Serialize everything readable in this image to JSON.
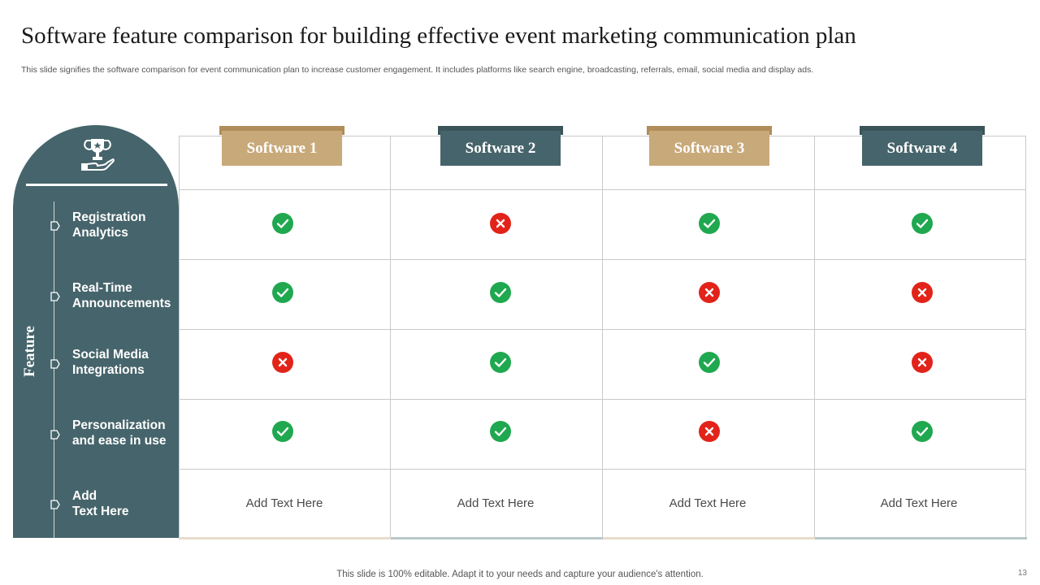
{
  "title": "Software feature comparison for building effective event marketing communication plan",
  "subtitle": "This slide signifies the software comparison for event communication plan to increase customer engagement. It includes platforms like search engine, broadcasting, referrals, email, social media and display ads.",
  "panel": {
    "vertical_label": "Feature",
    "icon": "trophy-in-hand-icon",
    "features": [
      {
        "line1": "Registration",
        "line2": "Analytics"
      },
      {
        "line1": "Real-Time",
        "line2": "Announcements"
      },
      {
        "line1": "Social Media",
        "line2": "Integrations"
      },
      {
        "line1": "Personalization",
        "line2": "and ease in use"
      },
      {
        "line1": "Add",
        "line2": "Text Here"
      }
    ]
  },
  "software": [
    {
      "name": "Software 1",
      "color": "#c8a97a",
      "cap_color": "#b08d59"
    },
    {
      "name": "Software 2",
      "color": "#46646b",
      "cap_color": "#3a545a"
    },
    {
      "name": "Software 3",
      "color": "#c8a97a",
      "cap_color": "#b08d59"
    },
    {
      "name": "Software 4",
      "color": "#46646b",
      "cap_color": "#3a545a"
    }
  ],
  "matrix": [
    [
      "check",
      "cross",
      "check",
      "check"
    ],
    [
      "check",
      "check",
      "cross",
      "cross"
    ],
    [
      "cross",
      "check",
      "check",
      "cross"
    ],
    [
      "check",
      "check",
      "cross",
      "check"
    ]
  ],
  "last_row": [
    "Add Text Here",
    "Add Text Here",
    "Add Text Here",
    "Add Text Here"
  ],
  "colors": {
    "check": "#1fa84f",
    "cross": "#e2231a",
    "panel": "#46646b",
    "tan": "#c8a97a"
  },
  "footer": "This slide is 100% editable. Adapt it to your needs and capture your audience's attention.",
  "page_number": "13"
}
